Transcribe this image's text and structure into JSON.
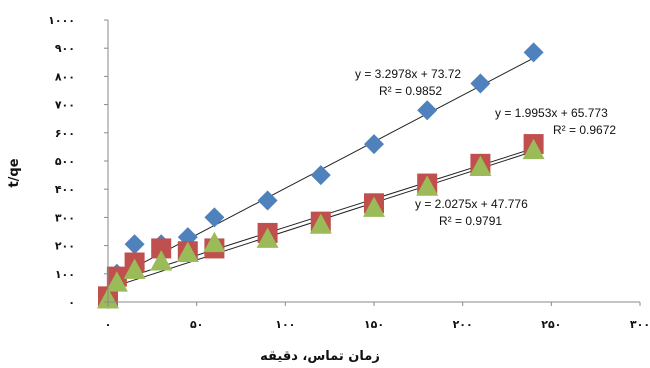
{
  "chart_data": {
    "type": "scatter",
    "xlabel": "زمان تماس، دقیقه",
    "ylabel": "t/qe",
    "xlim": [
      0,
      300
    ],
    "ylim": [
      0,
      1000
    ],
    "x_ticks": [
      0,
      50,
      100,
      150,
      200,
      250,
      300
    ],
    "y_ticks": [
      0,
      100,
      200,
      300,
      400,
      500,
      600,
      700,
      800,
      900,
      1000
    ],
    "x_tick_labels": [
      "۰",
      "۵۰",
      "۱۰۰",
      "۱۵۰",
      "۲۰۰",
      "۲۵۰",
      "۳۰۰"
    ],
    "y_tick_labels": [
      "۰",
      "۱۰۰",
      "۲۰۰",
      "۳۰۰",
      "۴۰۰",
      "۵۰۰",
      "۶۰۰",
      "۷۰۰",
      "۸۰۰",
      "۹۰۰",
      "۱۰۰۰"
    ],
    "grid": false,
    "series": [
      {
        "marker": "diamond",
        "color": "#4F81BD",
        "x": [
          0,
          5,
          15,
          30,
          45,
          60,
          90,
          120,
          150,
          180,
          210,
          240
        ],
        "y": [
          10,
          100,
          205,
          205,
          230,
          300,
          360,
          450,
          560,
          680,
          775,
          885
        ],
        "trendline": {
          "slope": 3.2978,
          "intercept": 73.72,
          "equation": "y = 3.2978x + 73.72",
          "r2": "R² = 0.9852"
        }
      },
      {
        "marker": "square",
        "color": "#C0504D",
        "x": [
          0,
          5,
          15,
          30,
          45,
          60,
          90,
          120,
          150,
          180,
          210,
          240
        ],
        "y": [
          20,
          90,
          140,
          190,
          180,
          190,
          245,
          285,
          350,
          420,
          490,
          560
        ],
        "trendline": {
          "slope": 1.9953,
          "intercept": 65.773,
          "equation": "y = 1.9953x + 65.773",
          "r2": "R² = 0.9672"
        }
      },
      {
        "marker": "triangle",
        "color": "#9BBB59",
        "x": [
          0,
          5,
          15,
          30,
          45,
          60,
          90,
          120,
          150,
          180,
          210,
          240
        ],
        "y": [
          10,
          70,
          115,
          145,
          175,
          210,
          225,
          275,
          335,
          410,
          480,
          540
        ],
        "trendline": {
          "slope": 2.0275,
          "intercept": 47.776,
          "equation": "y = 2.0275x + 47.776",
          "r2": "R² = 0.9791"
        }
      }
    ]
  }
}
